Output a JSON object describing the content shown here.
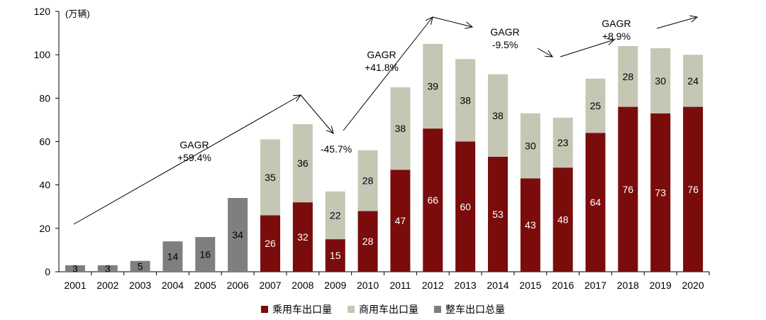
{
  "chart_data": {
    "type": "bar",
    "stacked": true,
    "unit_label": "(万辆)",
    "categories": [
      "2001",
      "2002",
      "2003",
      "2004",
      "2005",
      "2006",
      "2007",
      "2008",
      "2009",
      "2010",
      "2011",
      "2012",
      "2013",
      "2014",
      "2015",
      "2016",
      "2017",
      "2018",
      "2019",
      "2020"
    ],
    "series": [
      {
        "name": "乘用车出口量",
        "color": "#7a0c0c",
        "values": [
          null,
          null,
          null,
          null,
          null,
          null,
          26,
          32,
          15,
          28,
          47,
          66,
          60,
          53,
          43,
          48,
          64,
          76,
          73,
          76
        ]
      },
      {
        "name": "商用车出口量",
        "color": "#c6c6b5",
        "values": [
          null,
          null,
          null,
          null,
          null,
          null,
          35,
          36,
          22,
          28,
          38,
          39,
          38,
          38,
          30,
          23,
          25,
          28,
          30,
          24
        ]
      },
      {
        "name": "整车出口总量",
        "color": "#7f7f7f",
        "values": [
          3,
          3,
          5,
          14,
          16,
          34,
          null,
          null,
          null,
          null,
          null,
          null,
          null,
          null,
          null,
          null,
          null,
          null,
          null,
          null
        ]
      }
    ],
    "ylim": [
      0,
      120
    ],
    "yticks": [
      0,
      20,
      40,
      60,
      80,
      100,
      120
    ],
    "legend_position": "bottom",
    "annotations": [
      {
        "lines": [
          "GAGR",
          "+59.4%"
        ]
      },
      {
        "lines": [
          "-45.7%"
        ]
      },
      {
        "lines": [
          "GAGR",
          "+41.8%"
        ]
      },
      {
        "lines": [
          "GAGR",
          "-9.5%"
        ]
      },
      {
        "lines": [
          "GAGR",
          "+8.9%"
        ]
      }
    ]
  }
}
